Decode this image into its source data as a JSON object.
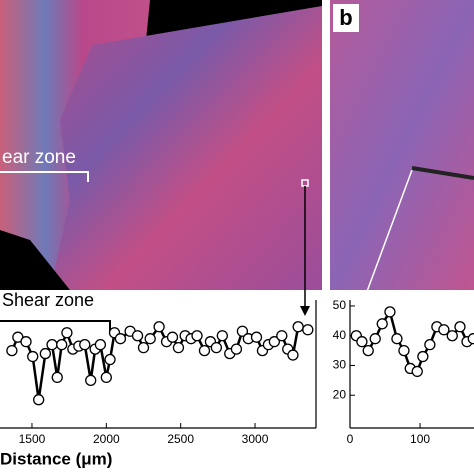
{
  "chart_data": [
    {
      "type": "line",
      "image_label": "ear zone",
      "annotation": "Shear zone",
      "xlabel": "Distance (μm)",
      "xlim": [
        1285,
        3410
      ],
      "xticks": [
        1500,
        2000,
        2500,
        3000
      ],
      "ylim": [
        10,
        52
      ],
      "x": [
        1365,
        1405,
        1460,
        1505,
        1545,
        1590,
        1635,
        1670,
        1700,
        1735,
        1775,
        1815,
        1855,
        1895,
        1925,
        1960,
        2000,
        2025,
        2055,
        2095,
        2160,
        2210,
        2250,
        2295,
        2355,
        2405,
        2445,
        2485,
        2530,
        2570,
        2610,
        2660,
        2700,
        2740,
        2780,
        2830,
        2875,
        2915,
        2955,
        3010,
        3050,
        3090,
        3130,
        3180,
        3220,
        3255,
        3290,
        3355
      ],
      "values": [
        35,
        39.5,
        38,
        33,
        18.5,
        34,
        37,
        26,
        37,
        41,
        35.5,
        36.5,
        37,
        25,
        35.5,
        37,
        26,
        32,
        41,
        39,
        41.5,
        40,
        36,
        39,
        43,
        38,
        39.5,
        36,
        40,
        39,
        40,
        35,
        38,
        36,
        40,
        34,
        35.5,
        41.5,
        39,
        39.5,
        35,
        37,
        38,
        40,
        35.5,
        33.5,
        43,
        42
      ],
      "color": "#000000"
    },
    {
      "type": "line",
      "panel_label": "b",
      "xlim": [
        0,
        177
      ],
      "xticks": [
        0,
        100
      ],
      "ylim": [
        10,
        52
      ],
      "yticks": [
        20,
        30,
        40,
        50
      ],
      "x": [
        9,
        17,
        26,
        36,
        46,
        57,
        67,
        77,
        86,
        96,
        104,
        114,
        124,
        134,
        146,
        157,
        167,
        176
      ],
      "values": [
        40,
        38,
        35,
        39,
        44,
        48,
        39,
        35,
        29,
        28,
        33,
        37,
        43,
        42,
        40,
        43,
        38,
        39
      ],
      "color": "#000000"
    }
  ]
}
